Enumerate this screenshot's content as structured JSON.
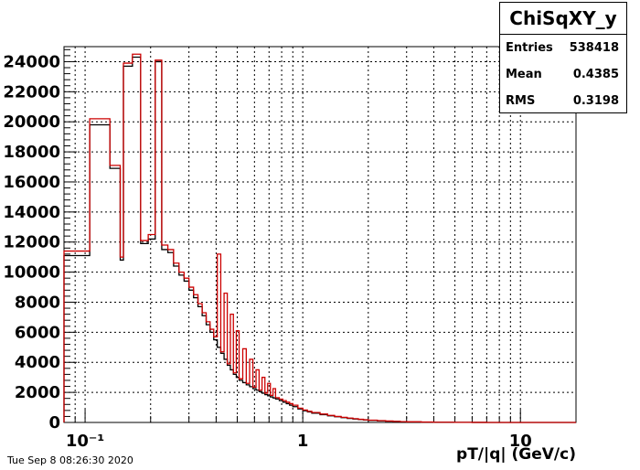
{
  "chart_data": {
    "type": "histogram",
    "title": "",
    "xlabel": "pT/|q| (GeV/c)",
    "ylabel": "",
    "x_scale": "log",
    "xlim": [
      0.08,
      18
    ],
    "ylim": [
      0,
      25000
    ],
    "grid": true,
    "x_tick_labels": [
      "10⁻¹",
      "1",
      "10"
    ],
    "x_ticks_major": [
      0.1,
      1,
      10
    ],
    "y_ticks": [
      0,
      2000,
      4000,
      6000,
      8000,
      10000,
      12000,
      14000,
      16000,
      18000,
      20000,
      22000,
      24000
    ],
    "series": [
      {
        "color": "#000000",
        "edges": [
          0.08,
          0.105,
          0.13,
          0.145,
          0.15,
          0.165,
          0.18,
          0.195,
          0.21,
          0.225,
          0.24,
          0.255,
          0.27,
          0.285,
          0.3,
          0.315,
          0.33,
          0.345,
          0.36,
          0.375,
          0.39,
          0.405,
          0.42,
          0.435,
          0.45,
          0.465,
          0.48,
          0.495,
          0.51,
          0.53,
          0.55,
          0.57,
          0.59,
          0.61,
          0.63,
          0.65,
          0.67,
          0.69,
          0.71,
          0.73,
          0.75,
          0.78,
          0.81,
          0.84,
          0.87,
          0.9,
          0.95,
          1.0,
          1.05,
          1.1,
          1.2,
          1.3,
          1.4,
          1.5,
          1.6,
          1.7,
          1.8,
          1.9,
          2.0,
          2.2,
          2.4,
          2.6,
          2.8,
          3.0,
          3.5,
          4.0,
          5.0,
          6.0,
          7.0,
          8.0,
          10.0,
          18.0
        ],
        "values": [
          11100,
          19800,
          16900,
          10800,
          23700,
          24300,
          11900,
          12200,
          24000,
          11500,
          11300,
          10400,
          9800,
          9400,
          8800,
          8300,
          7700,
          7100,
          6500,
          6000,
          5500,
          5000,
          4600,
          4200,
          3800,
          3500,
          3200,
          3000,
          2800,
          2650,
          2500,
          2380,
          2250,
          2150,
          2050,
          1950,
          1850,
          1770,
          1700,
          1630,
          1560,
          1450,
          1350,
          1250,
          1150,
          1050,
          900,
          780,
          700,
          620,
          520,
          440,
          380,
          320,
          270,
          230,
          200,
          170,
          140,
          110,
          85,
          65,
          50,
          38,
          25,
          15,
          8,
          4,
          2,
          1,
          0
        ]
      },
      {
        "color": "#cc0000",
        "edges": [
          0.08,
          0.105,
          0.13,
          0.145,
          0.15,
          0.165,
          0.18,
          0.195,
          0.21,
          0.225,
          0.24,
          0.255,
          0.27,
          0.285,
          0.3,
          0.315,
          0.33,
          0.345,
          0.36,
          0.375,
          0.39,
          0.405,
          0.42,
          0.435,
          0.45,
          0.465,
          0.48,
          0.495,
          0.51,
          0.53,
          0.55,
          0.57,
          0.59,
          0.61,
          0.63,
          0.65,
          0.67,
          0.69,
          0.71,
          0.73,
          0.75,
          0.78,
          0.81,
          0.84,
          0.87,
          0.9,
          0.95,
          1.0,
          1.05,
          1.1,
          1.2,
          1.3,
          1.4,
          1.5,
          1.6,
          1.7,
          1.8,
          1.9,
          2.0,
          2.2,
          2.4,
          2.6,
          2.8,
          3.0,
          3.5,
          4.0,
          5.0,
          6.0,
          7.0,
          8.0,
          10.0,
          18.0
        ],
        "values": [
          11400,
          20200,
          17100,
          11000,
          23900,
          24500,
          12100,
          12500,
          24100,
          11800,
          11500,
          10600,
          10000,
          9600,
          9000,
          8500,
          7900,
          7300,
          6700,
          6200,
          5700,
          11200,
          4700,
          8600,
          3900,
          7200,
          3300,
          6100,
          2900,
          4900,
          2600,
          4200,
          2350,
          3500,
          2150,
          3000,
          1950,
          2600,
          1800,
          2250,
          1650,
          1550,
          1450,
          1350,
          1250,
          1150,
          950,
          830,
          740,
          660,
          560,
          470,
          400,
          340,
          290,
          250,
          210,
          180,
          150,
          120,
          95,
          72,
          55,
          42,
          28,
          17,
          9,
          5,
          2,
          1,
          0
        ]
      }
    ]
  },
  "stats": {
    "title": "ChiSqXY_y",
    "rows": [
      {
        "label": "Entries",
        "value": "538418"
      },
      {
        "label": "Mean",
        "value": "0.4385"
      },
      {
        "label": "RMS",
        "value": "0.3198"
      }
    ]
  },
  "timestamp": "Tue Sep  8 08:26:30 2020"
}
